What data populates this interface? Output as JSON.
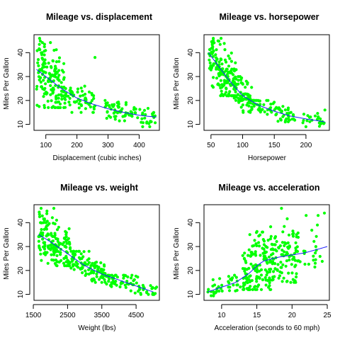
{
  "figure": {
    "background": "#ffffff",
    "point_color": "#00ff00",
    "curve_color": "#1a1aff"
  },
  "chart_data": [
    {
      "type": "scatter",
      "title": "Mileage vs. displacement",
      "xlabel": "Displacement (cubic inches)",
      "ylabel": "Miles Per Gallon",
      "xlim": [
        62,
        465
      ],
      "ylim": [
        7.5,
        47.5
      ],
      "xticks": [
        100,
        200,
        300,
        400
      ],
      "yticks": [
        10,
        20,
        30,
        40
      ],
      "clusters": [
        {
          "x": [
            70,
            160
          ],
          "y": [
            17,
            46
          ],
          "n": 160
        },
        {
          "x": [
            160,
            260
          ],
          "y": [
            15,
            30
          ],
          "n": 60
        },
        {
          "x": [
            290,
            360
          ],
          "y": [
            10,
            20
          ],
          "n": 50
        },
        {
          "x": [
            360,
            455
          ],
          "y": [
            9,
            17
          ],
          "n": 40
        }
      ],
      "points": [
        [
          258,
          38
        ],
        [
          80,
          46
        ],
        [
          72,
          18
        ],
        [
          225,
          26
        ]
      ],
      "curve": {
        "x": [
          70,
          100,
          150,
          200,
          250,
          300,
          350,
          400,
          455
        ],
        "y": [
          33,
          30,
          25,
          21,
          18.5,
          16.5,
          15,
          13.8,
          13
        ]
      }
    },
    {
      "type": "scatter",
      "title": "Mileage vs. horsepower",
      "xlabel": "Horsepower",
      "ylabel": "Miles Per Gallon",
      "xlim": [
        39,
        237
      ],
      "ylim": [
        7.5,
        47.5
      ],
      "xticks": [
        50,
        100,
        150,
        200
      ],
      "yticks": [
        10,
        20,
        30,
        40
      ],
      "clusters": [
        {
          "x": [
            46,
            90
          ],
          "y": [
            22,
            46
          ],
          "n": 150
        },
        {
          "x": [
            85,
            115
          ],
          "y": [
            15,
            30
          ],
          "n": 80
        },
        {
          "x": [
            110,
            175
          ],
          "y": [
            11,
            20
          ],
          "n": 70
        },
        {
          "x": [
            175,
            230
          ],
          "y": [
            9,
            15
          ],
          "n": 30
        }
      ],
      "points": [
        [
          66,
          46
        ],
        [
          230,
          16
        ],
        [
          200,
          9
        ]
      ],
      "curve": {
        "x": [
          46,
          60,
          80,
          100,
          125,
          150,
          175,
          200,
          230
        ],
        "y": [
          40,
          35,
          28,
          22,
          18,
          15.5,
          13.5,
          12.3,
          11
        ]
      }
    },
    {
      "type": "scatter",
      "title": "Mileage vs. weight",
      "xlabel": "Weight (lbs)",
      "ylabel": "Miles Per Gallon",
      "xlim": [
        1520,
        5180
      ],
      "ylim": [
        7.5,
        47.5
      ],
      "xticks": [
        1500,
        2500,
        3500,
        4500
      ],
      "yticks": [
        10,
        20,
        30,
        40
      ],
      "clusters": [
        {
          "x": [
            1650,
            2600
          ],
          "y": [
            22,
            46
          ],
          "n": 160
        },
        {
          "x": [
            2600,
            3600
          ],
          "y": [
            15,
            28
          ],
          "n": 110
        },
        {
          "x": [
            3600,
            5100
          ],
          "y": [
            10,
            18
          ],
          "n": 80
        }
      ],
      "points": [
        [
          2100,
          46
        ],
        [
          5100,
          13
        ]
      ],
      "curve": {
        "x": [
          1650,
          2000,
          2500,
          3000,
          3500,
          4000,
          4500,
          5000
        ],
        "y": [
          35,
          32,
          27,
          22,
          18.5,
          16,
          13.5,
          11
        ]
      }
    },
    {
      "type": "scatter",
      "title": "Mileage vs. acceleration",
      "xlabel": "Acceleration (seconds to 60 mph)",
      "ylabel": "Miles Per Gallon",
      "xlim": [
        7.5,
        25.3
      ],
      "ylim": [
        7.5,
        47.5
      ],
      "xticks": [
        10,
        15,
        20,
        25
      ],
      "yticks": [
        10,
        20,
        30,
        40
      ],
      "clusters": [
        {
          "x": [
            8,
            13
          ],
          "y": [
            9,
            18
          ],
          "n": 40
        },
        {
          "x": [
            13,
            17.5
          ],
          "y": [
            12,
            45
          ],
          "n": 170
        },
        {
          "x": [
            17.5,
            21
          ],
          "y": [
            15,
            46
          ],
          "n": 90
        },
        {
          "x": [
            21,
            25
          ],
          "y": [
            20,
            44
          ],
          "n": 20
        }
      ],
      "points": [
        [
          18.5,
          46
        ],
        [
          22,
          43
        ],
        [
          24.6,
          44
        ],
        [
          23.7,
          43
        ]
      ],
      "curve": {
        "x": [
          8,
          10,
          12,
          14,
          15,
          16,
          18,
          20,
          22,
          25
        ],
        "y": [
          11,
          13,
          15,
          19,
          22,
          24,
          25.5,
          26.5,
          27.5,
          30
        ]
      }
    }
  ]
}
